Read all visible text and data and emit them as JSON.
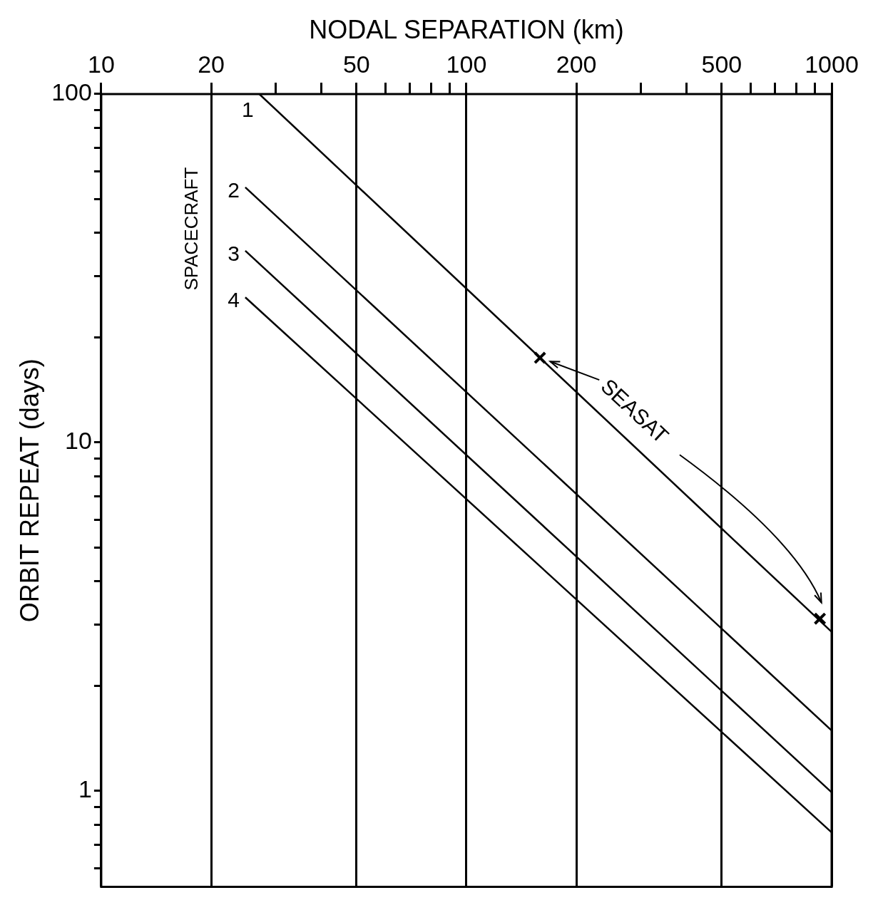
{
  "chart_data": {
    "type": "line",
    "xlabel": "NODAL SEPARATION (km)",
    "ylabel": "ORBIT REPEAT (days)",
    "log": "xy",
    "xlim": [
      10,
      1000
    ],
    "ylim": [
      0.53,
      100
    ],
    "xticks": [
      10,
      20,
      {
        "value": 30,
        "label": null
      },
      {
        "value": 40,
        "label": null
      },
      50,
      {
        "value": 60,
        "label": null
      },
      {
        "value": 70,
        "label": null
      },
      {
        "value": 80,
        "label": null
      },
      {
        "value": 90,
        "label": null
      },
      100,
      200,
      {
        "value": 300,
        "label": null
      },
      {
        "value": 400,
        "label": null
      },
      500,
      {
        "value": 600,
        "label": null
      },
      {
        "value": 700,
        "label": null
      },
      {
        "value": 800,
        "label": null
      },
      {
        "value": 900,
        "label": null
      },
      1000
    ],
    "yticks": [
      {
        "value": 0.6,
        "label": null
      },
      {
        "value": 0.7,
        "label": null
      },
      {
        "value": 0.8,
        "label": null
      },
      {
        "value": 0.9,
        "label": null
      },
      1,
      {
        "value": 2,
        "label": null
      },
      {
        "value": 3,
        "label": null
      },
      {
        "value": 4,
        "label": null
      },
      {
        "value": 5,
        "label": null
      },
      {
        "value": 6,
        "label": null
      },
      {
        "value": 7,
        "label": null
      },
      {
        "value": 8,
        "label": null
      },
      {
        "value": 9,
        "label": null
      },
      10,
      {
        "value": 20,
        "label": null
      },
      {
        "value": 30,
        "label": null
      },
      {
        "value": 40,
        "label": null
      },
      {
        "value": 50,
        "label": null
      },
      {
        "value": 60,
        "label": null
      },
      {
        "value": 70,
        "label": null
      },
      {
        "value": 80,
        "label": null
      },
      {
        "value": 90,
        "label": null
      },
      100
    ],
    "grid": "x",
    "legend": false,
    "marker": "none",
    "line_style": "solid",
    "annotations": [
      "SPACECRAFT"
    ],
    "series": [
      {
        "name": "1",
        "color": "#000000",
        "x": [
          27.1,
          1000
        ],
        "values": [
          100,
          2.86
        ]
      },
      {
        "name": "2",
        "color": "#000000",
        "x": [
          24.8,
          1000
        ],
        "values": [
          54,
          1.49
        ]
      },
      {
        "name": "3",
        "color": "#000000",
        "x": [
          24.8,
          1000
        ],
        "values": [
          35.5,
          0.99
        ]
      },
      {
        "name": "4",
        "color": "#000000",
        "x": [
          24.8,
          1000
        ],
        "values": [
          26.1,
          0.76
        ]
      },
      {
        "name": "SEASAT",
        "type": "scatter",
        "marker": "cross",
        "color": "#000000",
        "x": [
          159,
          929
        ],
        "values": [
          17.5,
          3.12
        ]
      }
    ]
  }
}
